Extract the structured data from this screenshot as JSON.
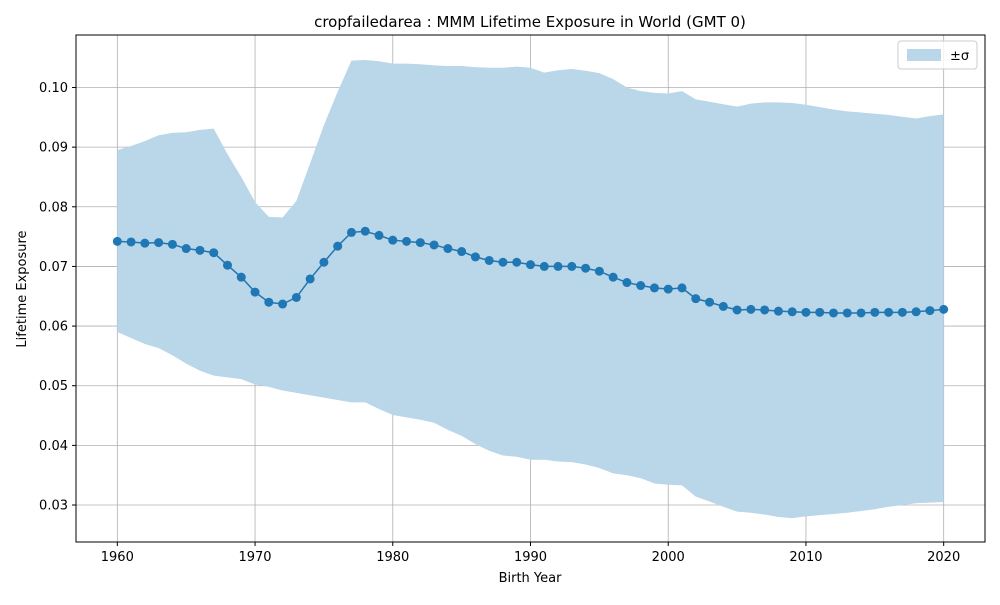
{
  "chart_data": {
    "type": "line",
    "title": "cropfailedarea : MMM Lifetime Exposure in World (GMT 0)",
    "xlabel": "Birth Year",
    "ylabel": "Lifetime Exposure",
    "xlim": [
      1957,
      2023
    ],
    "ylim": [
      0.0238,
      0.1088
    ],
    "x_ticks": [
      1960,
      1970,
      1980,
      1990,
      2000,
      2010,
      2020
    ],
    "x_tick_labels": [
      "1960",
      "1970",
      "1980",
      "1990",
      "2000",
      "2010",
      "2020"
    ],
    "y_ticks": [
      0.03,
      0.04,
      0.05,
      0.06,
      0.07,
      0.08,
      0.09,
      0.1
    ],
    "y_tick_labels": [
      "0.03",
      "0.04",
      "0.05",
      "0.06",
      "0.07",
      "0.08",
      "0.09",
      "0.10"
    ],
    "grid": true,
    "legend_position": "top-right",
    "legend_label": "±σ",
    "colors": {
      "line": "#1f77b4",
      "band": "#bad6e9"
    },
    "x": [
      1960,
      1961,
      1962,
      1963,
      1964,
      1965,
      1966,
      1967,
      1968,
      1969,
      1970,
      1971,
      1972,
      1973,
      1974,
      1975,
      1976,
      1977,
      1978,
      1979,
      1980,
      1981,
      1982,
      1983,
      1984,
      1985,
      1986,
      1987,
      1988,
      1989,
      1990,
      1991,
      1992,
      1993,
      1994,
      1995,
      1996,
      1997,
      1998,
      1999,
      2000,
      2001,
      2002,
      2003,
      2004,
      2005,
      2006,
      2007,
      2008,
      2009,
      2010,
      2011,
      2012,
      2013,
      2014,
      2015,
      2016,
      2017,
      2018,
      2019,
      2020
    ],
    "series": [
      {
        "values": [
          0.0742,
          0.0741,
          0.0739,
          0.074,
          0.0737,
          0.073,
          0.0727,
          0.0723,
          0.0702,
          0.0682,
          0.0657,
          0.064,
          0.0637,
          0.0648,
          0.0679,
          0.0707,
          0.0734,
          0.0757,
          0.0759,
          0.0752,
          0.0744,
          0.0742,
          0.074,
          0.0736,
          0.073,
          0.0725,
          0.0716,
          0.071,
          0.0707,
          0.0707,
          0.0703,
          0.07,
          0.07,
          0.07,
          0.0697,
          0.0692,
          0.0682,
          0.0673,
          0.0668,
          0.0664,
          0.0662,
          0.0664,
          0.0646,
          0.064,
          0.0633,
          0.0627,
          0.0628,
          0.0627,
          0.0625,
          0.0624,
          0.0623,
          0.0623,
          0.0622,
          0.0622,
          0.0622,
          0.0623,
          0.0623,
          0.0623,
          0.0624,
          0.0626,
          0.0628
        ]
      }
    ],
    "band_upper": [
      0.0895,
      0.0902,
      0.091,
      0.092,
      0.0924,
      0.0925,
      0.0929,
      0.0931,
      0.0888,
      0.085,
      0.0808,
      0.0783,
      0.0782,
      0.081,
      0.0873,
      0.0937,
      0.0993,
      0.1045,
      0.1046,
      0.1044,
      0.104,
      0.104,
      0.1039,
      0.1037,
      0.1036,
      0.1036,
      0.1034,
      0.1033,
      0.1033,
      0.1035,
      0.1033,
      0.1025,
      0.1029,
      0.1031,
      0.1028,
      0.1024,
      0.1014,
      0.1,
      0.0994,
      0.0991,
      0.099,
      0.0994,
      0.098,
      0.0976,
      0.0972,
      0.0968,
      0.0973,
      0.0975,
      0.0975,
      0.0974,
      0.0971,
      0.0967,
      0.0963,
      0.096,
      0.0958,
      0.0956,
      0.0954,
      0.0951,
      0.0948,
      0.0952,
      0.0955
    ],
    "band_lower": [
      0.059,
      0.058,
      0.057,
      0.0563,
      0.0551,
      0.0537,
      0.0525,
      0.0517,
      0.0514,
      0.0511,
      0.0502,
      0.0498,
      0.0492,
      0.0488,
      0.0484,
      0.048,
      0.0476,
      0.0472,
      0.0472,
      0.0461,
      0.0451,
      0.0447,
      0.0443,
      0.0438,
      0.0426,
      0.0416,
      0.0402,
      0.0391,
      0.0383,
      0.0381,
      0.0376,
      0.0376,
      0.0373,
      0.0372,
      0.0368,
      0.0362,
      0.0353,
      0.035,
      0.0345,
      0.0336,
      0.0334,
      0.0333,
      0.0314,
      0.0306,
      0.0297,
      0.0289,
      0.0287,
      0.0284,
      0.028,
      0.0278,
      0.0281,
      0.0283,
      0.0285,
      0.0287,
      0.029,
      0.0293,
      0.0297,
      0.03,
      0.0303,
      0.0304,
      0.0305
    ]
  }
}
